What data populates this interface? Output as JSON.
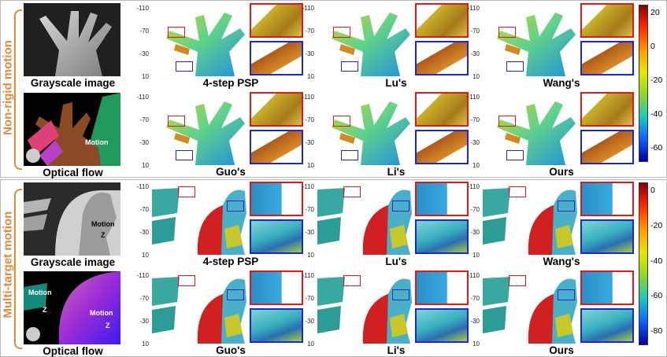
{
  "sections": {
    "top": {
      "label": "Non-rigid motion",
      "left_captions": [
        "Grayscale image",
        "Optical flow"
      ],
      "flow_motion_label": "Motion",
      "method_captions": [
        "4-step PSP",
        "Lu's",
        "Wang's",
        "Guo's",
        "Li's",
        "Ours"
      ],
      "y_ticks": [
        "-110",
        "-70",
        "-30",
        "10"
      ],
      "colorbar": {
        "ticks": [
          "20",
          "0",
          "-20",
          "-40",
          "-60"
        ]
      }
    },
    "bottom": {
      "label": "Multi-target motion",
      "left_captions": [
        "Grayscale image",
        "Optical flow"
      ],
      "gray_motion_label": "Motion",
      "gray_z_label": "Z",
      "flow_motion_left": "Motion",
      "flow_z_left": "Z",
      "flow_motion_right": "Motion",
      "flow_z_right": "Z",
      "method_captions": [
        "4-step PSP",
        "Lu's",
        "Wang's",
        "Guo's",
        "Li's",
        "Ours"
      ],
      "y_ticks": [
        "-110",
        "-70",
        "-30",
        "10"
      ],
      "colorbar": {
        "ticks": [
          "0",
          "-20",
          "-40",
          "-60",
          "-80"
        ]
      }
    }
  },
  "colors": {
    "accent": "#e08a3c",
    "zoom_red": "#e01818",
    "zoom_blue": "#1d26d6"
  }
}
